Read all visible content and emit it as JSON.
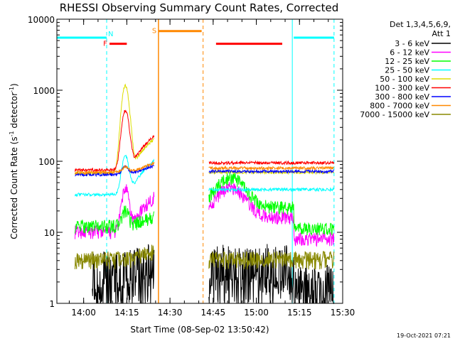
{
  "chart_data": {
    "type": "line",
    "title": "RHESSI Observing Summary Count Rates, Corrected",
    "xlabel": "Start Time (08-Sep-02 13:50:42)",
    "ylabel_main": "Corrected Count Rate (s",
    "ylabel_sup1": "-1",
    "ylabel_mid": " detector",
    "ylabel_sup2": "-1",
    "ylabel_end": ")",
    "y_scale": "log",
    "ylim": [
      1,
      10000
    ],
    "xlim": [
      "13:50:42",
      "15:30:00"
    ],
    "y_ticks": [
      "1",
      "10",
      "100",
      "1000",
      "10000"
    ],
    "x_ticks": [
      "14:00",
      "14:15",
      "14:30",
      "14:45",
      "15:00",
      "15:15",
      "15:30"
    ],
    "legend_header_1": "Det 1,3,4,5,6,9,",
    "legend_header_2": "Att 1",
    "legend_placement": "right",
    "series": [
      {
        "name": "3 - 6 keV",
        "color": "#000000",
        "level_before": 1.6,
        "level_after": 2.0
      },
      {
        "name": "6 - 12 keV",
        "color": "#ff00ff",
        "level_before": 10,
        "level_after": 16
      },
      {
        "name": "12 - 25 keV",
        "color": "#00ff00",
        "level_before": 12,
        "level_after": 22
      },
      {
        "name": "25 - 50 keV",
        "color": "#00ffff",
        "level_before": 34,
        "level_after": 40
      },
      {
        "name": "50 - 100 keV",
        "color": "#dddd00",
        "level_before": 68,
        "level_after": 70
      },
      {
        "name": "100 - 300 keV",
        "color": "#ff0000",
        "level_before": 75,
        "level_after": 95
      },
      {
        "name": "300 - 800 keV",
        "color": "#0000ff",
        "level_before": 65,
        "level_after": 72
      },
      {
        "name": "800 - 7000 keV",
        "color": "#ff8800",
        "level_before": 70,
        "level_after": 80
      },
      {
        "name": "7000 - 15000 keV",
        "color": "#888800",
        "level_before": 4,
        "level_after": 4
      }
    ],
    "peak": {
      "time": "14:14:30",
      "value": 1200
    },
    "gap": {
      "start": "14:24:30",
      "end": "14:43:30"
    },
    "flags": [
      {
        "label": "N",
        "color": "#00ffff",
        "segments": [
          [
            "13:50:42",
            "14:08:00"
          ],
          [
            "15:13:00",
            "15:27:00"
          ]
        ],
        "value": 5500
      },
      {
        "label": "F",
        "color": "#ff0000",
        "segments": [
          [
            "14:09:00",
            "14:15:00"
          ]
        ],
        "value": 4500
      },
      {
        "label": "S",
        "color": "#ff8800",
        "segments": [
          [
            "14:26:00",
            "14:41:00"
          ]
        ],
        "value": 6800
      },
      {
        "label": "",
        "color": "#ff0000",
        "segments": [
          [
            "14:46:00",
            "15:09:00"
          ]
        ],
        "value": 4500
      }
    ],
    "vlines": [
      {
        "time": "13:50:42",
        "color": "#00ffff",
        "style": "solid"
      },
      {
        "time": "14:08:00",
        "color": "#00ffff",
        "style": "dashed"
      },
      {
        "time": "14:26:00",
        "color": "#ff8800",
        "style": "solid"
      },
      {
        "time": "14:41:30",
        "color": "#ff8800",
        "style": "dashed"
      },
      {
        "time": "15:12:30",
        "color": "#00ffff",
        "style": "solid"
      },
      {
        "time": "15:27:00",
        "color": "#00ffff",
        "style": "dashed"
      }
    ]
  },
  "footer": {
    "timestamp": "19-Oct-2021 07:21"
  }
}
